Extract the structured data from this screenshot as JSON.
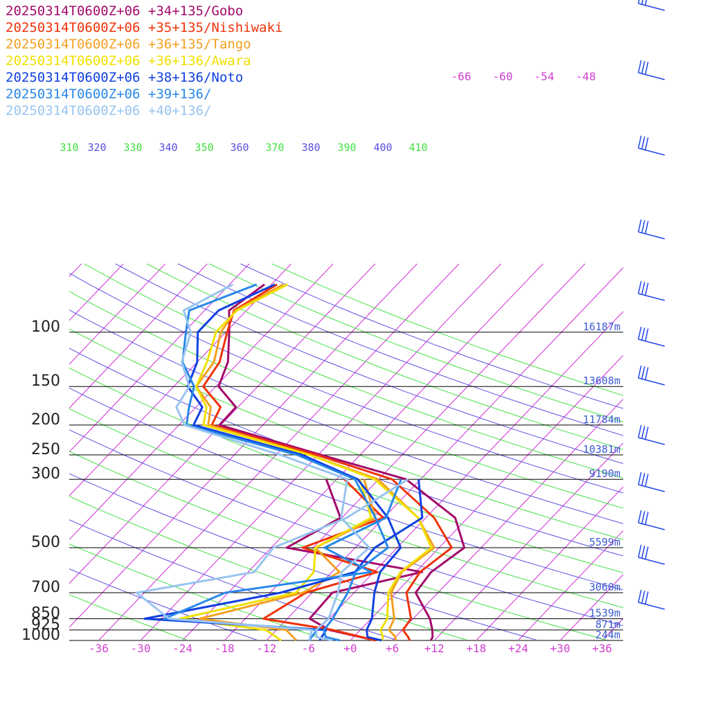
{
  "legend": [
    {
      "label": "20250314T0600Z+06 +34+135/Gobo",
      "color": "#a30a6a"
    },
    {
      "label": "20250314T0600Z+06 +35+135/Nishiwaki",
      "color": "#f0320a"
    },
    {
      "label": "20250314T0600Z+06 +36+135/Tango",
      "color": "#f4a020"
    },
    {
      "label": "20250314T0600Z+06 +36+136/Awara",
      "color": "#f0e000"
    },
    {
      "label": "20250314T0600Z+06 +38+136/Noto",
      "color": "#1040e0"
    },
    {
      "label": "20250314T0600Z+06 +39+136/",
      "color": "#2888e8"
    },
    {
      "label": "20250314T0600Z+06 +40+136/",
      "color": "#98c4f0"
    }
  ],
  "chart_data": {
    "type": "line",
    "subtype": "skew-T sounding",
    "pressure_levels": [
      {
        "p": 100,
        "label": "100",
        "height": "16187m"
      },
      {
        "p": 150,
        "label": "150",
        "height": "13608m"
      },
      {
        "p": 200,
        "label": "200",
        "height": "11784m"
      },
      {
        "p": 250,
        "label": "250",
        "height": "10381m"
      },
      {
        "p": 300,
        "label": "300",
        "height": "9190m"
      },
      {
        "p": 500,
        "label": "500",
        "height": "5599m"
      },
      {
        "p": 700,
        "label": "700",
        "height": "3060m"
      },
      {
        "p": 850,
        "label": "850",
        "height": "1539m"
      },
      {
        "p": 925,
        "label": "925",
        "height": "871m"
      },
      {
        "p": 1000,
        "label": "1000",
        "height": "244m"
      }
    ],
    "x_ticks": [
      "-36",
      "-30",
      "-24",
      "-18",
      "-12",
      "-6",
      "+0",
      "+6",
      "+12",
      "+18",
      "+24",
      "+30",
      "+36"
    ],
    "x_tick_values": [
      -36,
      -30,
      -24,
      -18,
      -12,
      -6,
      0,
      6,
      12,
      18,
      24,
      30,
      36
    ],
    "top_isotherm_labels": [
      "-66",
      "-60",
      "-54",
      "-48"
    ],
    "theta_labels": [
      "310",
      "320",
      "330",
      "340",
      "350",
      "360",
      "370",
      "380",
      "390",
      "400",
      "410"
    ],
    "ylim": [
      1000,
      70
    ],
    "series": [
      {
        "name": "20250314T0600Z+06 +34+135/Gobo",
        "color": "#a30a6a",
        "temperature": [
          [
            1000,
            11.5
          ],
          [
            975,
            11.3
          ],
          [
            925,
            10.3
          ],
          [
            850,
            8.4
          ],
          [
            700,
            2.8
          ],
          [
            600,
            2.2
          ],
          [
            500,
            3.6
          ],
          [
            400,
            -1.8
          ],
          [
            300,
            -14.1
          ],
          [
            250,
            -29.6
          ],
          [
            200,
            -48.2
          ],
          [
            175,
            -48.3
          ],
          [
            150,
            -53.6
          ],
          [
            125,
            -55.6
          ],
          [
            100,
            -59.5
          ],
          [
            85,
            -62.5
          ],
          [
            70,
            -61.0
          ]
        ],
        "dewpoint": [
          [
            1000,
            3.6
          ],
          [
            925,
            -4.4
          ],
          [
            850,
            -8.8
          ],
          [
            700,
            -9.1
          ],
          [
            600,
            0.9
          ],
          [
            500,
            -21.8
          ],
          [
            400,
            -18.2
          ],
          [
            300,
            -25.5
          ]
        ]
      },
      {
        "name": "20250314T0600Z+06 +35+135/Nishiwaki",
        "color": "#f0320a",
        "temperature": [
          [
            1000,
            8.5
          ],
          [
            975,
            7.8
          ],
          [
            925,
            6.1
          ],
          [
            850,
            5.7
          ],
          [
            700,
            1.5
          ],
          [
            600,
            0.6
          ],
          [
            500,
            1.8
          ],
          [
            400,
            -4.8
          ],
          [
            300,
            -16.1
          ],
          [
            250,
            -30.2
          ],
          [
            200,
            -49.3
          ],
          [
            175,
            -50.5
          ],
          [
            150,
            -55.8
          ],
          [
            125,
            -56.8
          ],
          [
            100,
            -59.8
          ],
          [
            85,
            -61.8
          ],
          [
            70,
            -59.2
          ]
        ],
        "dewpoint": [
          [
            1000,
            3.6
          ],
          [
            925,
            -3.9
          ],
          [
            850,
            -15.4
          ],
          [
            700,
            -12.9
          ],
          [
            600,
            -5.5
          ],
          [
            500,
            -19.5
          ],
          [
            400,
            -12.1
          ],
          [
            300,
            -22.9
          ]
        ]
      },
      {
        "name": "20250314T0600Z+06 +36+135/Tango",
        "color": "#f4a020",
        "temperature": [
          [
            1000,
            6.5
          ],
          [
            975,
            6.0
          ],
          [
            925,
            4.1
          ],
          [
            850,
            3.3
          ],
          [
            700,
            -0.7
          ],
          [
            600,
            -2.0
          ],
          [
            500,
            -0.7
          ],
          [
            400,
            -7.1
          ],
          [
            300,
            -18.1
          ],
          [
            250,
            -31.2
          ],
          [
            200,
            -49.8
          ],
          [
            175,
            -51.9
          ],
          [
            150,
            -56.8
          ],
          [
            125,
            -57.6
          ],
          [
            100,
            -60.7
          ],
          [
            85,
            -61.6
          ],
          [
            70,
            -58.3
          ]
        ],
        "dewpoint": [
          [
            1000,
            -7.7
          ],
          [
            925,
            -10.6
          ],
          [
            850,
            -24.5
          ],
          [
            700,
            -13.3
          ],
          [
            600,
            -10.9
          ],
          [
            500,
            -17.7
          ],
          [
            400,
            -13.2
          ],
          [
            300,
            -20.1
          ]
        ]
      },
      {
        "name": "20250314T0600Z+06 +36+136/Awara",
        "color": "#f0e000",
        "temperature": [
          [
            1000,
            4.5
          ],
          [
            975,
            4.2
          ],
          [
            925,
            2.9
          ],
          [
            850,
            2.3
          ],
          [
            700,
            -1.1
          ],
          [
            600,
            -2.2
          ],
          [
            500,
            -1.1
          ],
          [
            400,
            -7.1
          ],
          [
            300,
            -18.6
          ],
          [
            250,
            -31.2
          ],
          [
            200,
            -50.5
          ],
          [
            175,
            -52.5
          ],
          [
            150,
            -56.8
          ],
          [
            125,
            -58.6
          ],
          [
            100,
            -61.4
          ],
          [
            85,
            -61.4
          ],
          [
            70,
            -57.7
          ]
        ],
        "dewpoint": [
          [
            1000,
            -9.9
          ],
          [
            925,
            -13.5
          ],
          [
            850,
            -27.4
          ],
          [
            700,
            -14.3
          ],
          [
            600,
            -14.6
          ],
          [
            500,
            -17.7
          ],
          [
            400,
            -13.8
          ],
          [
            300,
            -20.7
          ]
        ]
      },
      {
        "name": "20250314T0600Z+06 +38+136/Noto",
        "color": "#1040e0",
        "temperature": [
          [
            1000,
            4.5
          ],
          [
            975,
            2.0
          ],
          [
            925,
            0.9
          ],
          [
            850,
            0.1
          ],
          [
            700,
            -3.1
          ],
          [
            600,
            -5.1
          ],
          [
            500,
            -5.5
          ],
          [
            400,
            -11.4
          ],
          [
            300,
            -21.0
          ],
          [
            250,
            -32.3
          ],
          [
            200,
            -51.9
          ],
          [
            175,
            -53.1
          ],
          [
            150,
            -58.0
          ],
          [
            125,
            -60.0
          ],
          [
            100,
            -64.0
          ],
          [
            85,
            -64.0
          ],
          [
            70,
            -59.5
          ]
        ],
        "dewpoint": [
          [
            1000,
            -4.4
          ],
          [
            925,
            -4.9
          ],
          [
            850,
            -32.4
          ],
          [
            700,
            -16.5
          ],
          [
            600,
            -8.7
          ],
          [
            500,
            -9.2
          ],
          [
            400,
            -6.5
          ],
          [
            300,
            -12.3
          ]
        ]
      },
      {
        "name": "20250314T0600Z+06 +39+136/",
        "color": "#2888e8",
        "temperature": [
          [
            1000,
            -1.5
          ],
          [
            975,
            -4.0
          ],
          [
            925,
            -5.2
          ],
          [
            850,
            -5.5
          ],
          [
            700,
            -6.9
          ],
          [
            600,
            -8.6
          ],
          [
            500,
            -7.3
          ],
          [
            400,
            -13.2
          ],
          [
            300,
            -21.4
          ],
          [
            250,
            -33.0
          ],
          [
            200,
            -52.9
          ],
          [
            175,
            -55.0
          ],
          [
            150,
            -57.1
          ],
          [
            125,
            -62.1
          ],
          [
            100,
            -65.7
          ],
          [
            85,
            -68.2
          ],
          [
            70,
            -62.1
          ]
        ],
        "dewpoint": [
          [
            1000,
            -5.9
          ],
          [
            925,
            -6.2
          ],
          [
            850,
            -29.6
          ],
          [
            700,
            -24.4
          ],
          [
            600,
            -6.4
          ],
          [
            500,
            -16.4
          ],
          [
            400,
            -11.7
          ],
          [
            300,
            -14.8
          ]
        ]
      },
      {
        "name": "20250314T0600Z+06 +40+136/",
        "color": "#98c4f0",
        "temperature": [
          [
            1000,
            -2.5
          ],
          [
            975,
            -5.3
          ],
          [
            925,
            -6.3
          ],
          [
            850,
            -6.1
          ],
          [
            700,
            -8.3
          ],
          [
            600,
            -10.6
          ],
          [
            500,
            -10.0
          ],
          [
            400,
            -18.1
          ],
          [
            300,
            -22.5
          ],
          [
            250,
            -35.4
          ],
          [
            200,
            -53.2
          ],
          [
            175,
            -56.8
          ],
          [
            150,
            -57.8
          ],
          [
            125,
            -62.2
          ],
          [
            100,
            -65.0
          ],
          [
            85,
            -69.0
          ],
          [
            70,
            -65.5
          ]
        ],
        "dewpoint": [
          [
            1000,
            -5.9
          ],
          [
            925,
            -6.9
          ],
          [
            850,
            -28.9
          ],
          [
            700,
            -37.1
          ],
          [
            600,
            -23.1
          ],
          [
            500,
            -23.7
          ],
          [
            400,
            -17.3
          ],
          [
            300,
            -13.8
          ]
        ]
      }
    ]
  }
}
